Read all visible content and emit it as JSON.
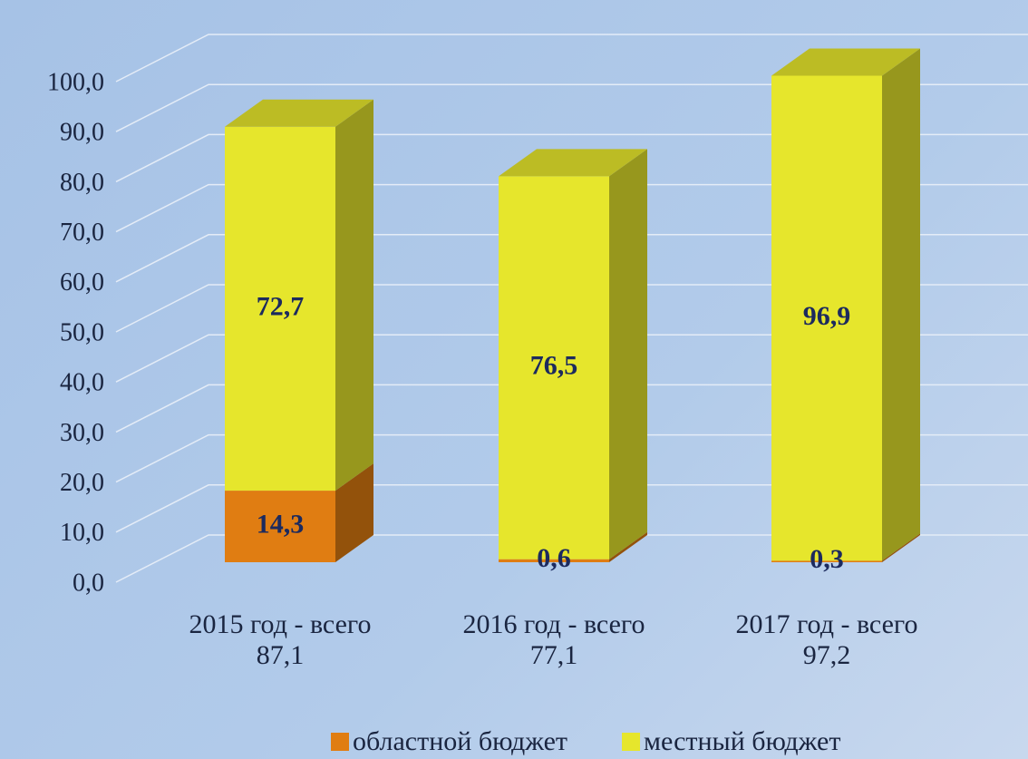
{
  "chart_data": {
    "type": "stacked_bar_3d",
    "categories": [
      "2015 год - всего\n87,1",
      "2016 год - всего\n77,1",
      "2017 год - всего\n97,2"
    ],
    "series": [
      {
        "name": "областной бюджет",
        "color": "#e07d12",
        "values": [
          14.3,
          0.6,
          0.3
        ],
        "value_labels": [
          "14,3",
          "0,6",
          "0,3"
        ]
      },
      {
        "name": "местный бюджет",
        "color": "#e6e62c",
        "values": [
          72.7,
          76.5,
          96.9
        ],
        "value_labels": [
          "72,7",
          "76,5",
          "96,9"
        ]
      }
    ],
    "ylim": [
      0,
      100
    ],
    "yticks": [
      {
        "value": 0,
        "label": "0,0"
      },
      {
        "value": 10,
        "label": "10,0"
      },
      {
        "value": 20,
        "label": "20,0"
      },
      {
        "value": 30,
        "label": "30,0"
      },
      {
        "value": 40,
        "label": "40,0"
      },
      {
        "value": 50,
        "label": "50,0"
      },
      {
        "value": 60,
        "label": "60,0"
      },
      {
        "value": 70,
        "label": "70,0"
      },
      {
        "value": 80,
        "label": "80,0"
      },
      {
        "value": 90,
        "label": "90,0"
      },
      {
        "value": 100,
        "label": "100,0"
      }
    ],
    "grid": true,
    "legend": "bottom"
  }
}
